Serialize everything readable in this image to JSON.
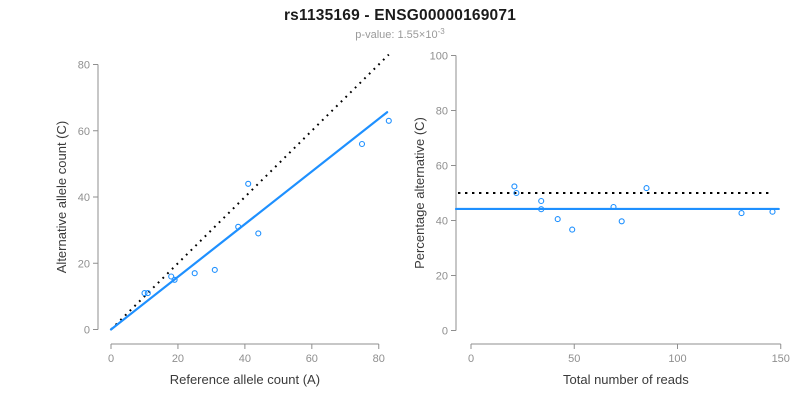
{
  "header": {
    "title": "rs1135169 - ENSG00000169071",
    "pvalue_label": "p-value: 1.55×10",
    "pvalue_exponent": "-3"
  },
  "colors": {
    "accent_blue": "#1E90FF",
    "reference_black": "#000000",
    "axis_gray": "#8f8f8f",
    "tick_text_gray": "#8f8f8f",
    "axis_title_gray": "#3a3a3a"
  },
  "chart_data": [
    {
      "type": "scatter",
      "title": "",
      "xlabel": "Reference allele count (A)",
      "ylabel": "Alternative allele count (C)",
      "xticks": [
        0,
        20,
        40,
        60,
        80
      ],
      "yticks": [
        0,
        20,
        40,
        60,
        80
      ],
      "xlim": [
        0,
        84
      ],
      "ylim": [
        0,
        84
      ],
      "grid": false,
      "legend": "none",
      "points": [
        [
          10,
          11
        ],
        [
          11,
          11
        ],
        [
          18,
          16
        ],
        [
          19,
          15
        ],
        [
          25,
          17
        ],
        [
          31,
          18
        ],
        [
          38,
          31
        ],
        [
          41,
          44
        ],
        [
          44,
          29
        ],
        [
          75,
          56
        ],
        [
          83,
          63
        ]
      ],
      "fit_line": {
        "x1": 0,
        "y1": 0,
        "x2": 82.5,
        "y2": 65.6,
        "style": "solid-blue"
      },
      "identity_line": {
        "x1": 0,
        "y1": 0,
        "x2": 83,
        "y2": 83,
        "style": "dotted-black"
      }
    },
    {
      "type": "scatter",
      "title": "",
      "xlabel": "Total number of reads",
      "ylabel": "Percentage alternative (C)",
      "xticks": [
        0,
        50,
        100,
        150
      ],
      "yticks": [
        0,
        20,
        40,
        60,
        80,
        100
      ],
      "xlim": [
        0,
        150
      ],
      "ylim": [
        0,
        100
      ],
      "grid": false,
      "legend": "none",
      "points": [
        [
          21,
          52.4
        ],
        [
          22,
          50.0
        ],
        [
          34,
          47.1
        ],
        [
          34,
          44.1
        ],
        [
          42,
          40.5
        ],
        [
          49,
          36.7
        ],
        [
          69,
          44.9
        ],
        [
          73,
          39.7
        ],
        [
          85,
          51.8
        ],
        [
          131,
          42.7
        ],
        [
          146,
          43.2
        ]
      ],
      "fit_hline": {
        "y": 44.2,
        "style": "solid-blue"
      },
      "reference_hline": {
        "y": 50,
        "style": "dotted-black"
      }
    }
  ]
}
